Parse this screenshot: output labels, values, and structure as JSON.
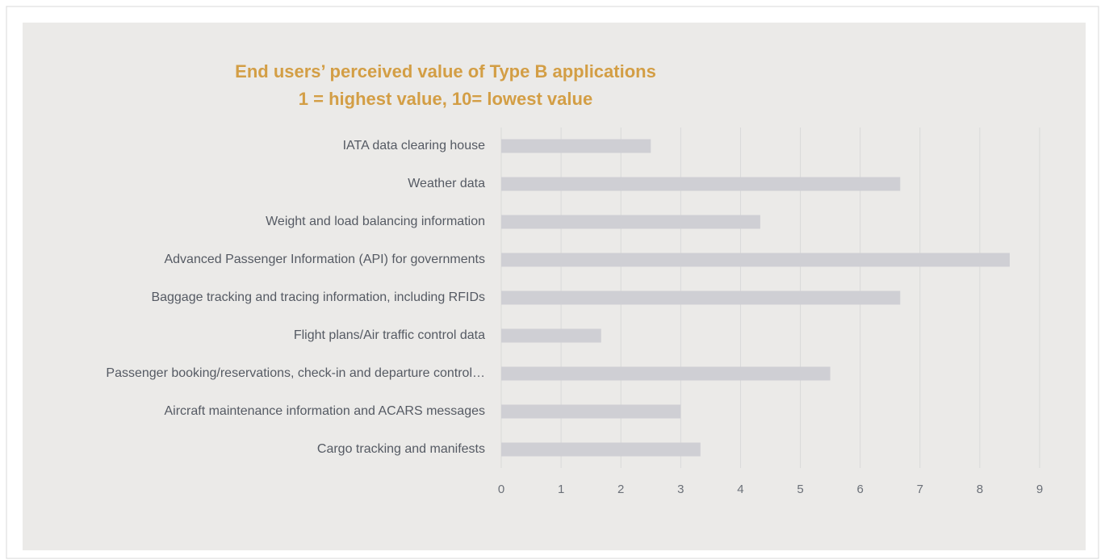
{
  "chart_data": {
    "type": "hbar",
    "title": "End users’ perceived value of Type B applications",
    "subtitle": "1 = highest value, 10= lowest value",
    "categories": [
      "IATA data clearing house",
      "Weather data",
      "Weight and load balancing information",
      "Advanced Passenger Information (API) for governments",
      "Baggage tracking and tracing information, including RFIDs",
      "Flight plans/Air traffic control data",
      "Passenger booking/reservations, check-in and departure control…",
      "Aircraft maintenance information and ACARS messages",
      "Cargo tracking and manifests"
    ],
    "values": [
      2.5,
      6.67,
      4.33,
      8.5,
      6.67,
      1.67,
      5.5,
      3,
      3.33
    ],
    "color": "#cfcfd4",
    "xlim": [
      0,
      9
    ],
    "xticks": [
      0,
      1,
      2,
      3,
      4,
      5,
      6,
      7,
      8,
      9
    ],
    "grid": true
  }
}
